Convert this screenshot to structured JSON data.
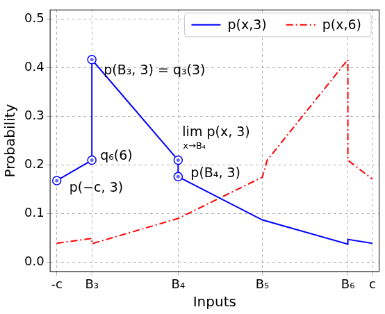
{
  "chart_data": {
    "type": "line",
    "x_label": "Inputs",
    "y_label": "Probability",
    "xlim": [
      -4.7,
      4.7
    ],
    "xticks": [
      {
        "value": -4.5,
        "label": "-c"
      },
      {
        "value": -3.5,
        "label": "B₃"
      },
      {
        "value": -1.04,
        "label": "B₄"
      },
      {
        "value": 1.36,
        "label": "B₅"
      },
      {
        "value": 3.8,
        "label": "B₆"
      },
      {
        "value": 4.5,
        "label": "c"
      }
    ],
    "ylim": [
      -0.02,
      0.52
    ],
    "yticks": [
      {
        "value": 0,
        "label": "0.0"
      },
      0.1,
      0.2,
      0.3,
      0.4,
      0.5
    ],
    "grid": true,
    "legend": "upper right",
    "series": [
      {
        "name": "p(x,3)",
        "color": "#0000ff",
        "line_style": "solid",
        "x": [
          -4.5,
          -3.5,
          -3.5,
          -1.04,
          -1.04,
          1.36,
          3.8,
          3.8,
          4.5
        ],
        "values": [
          0.168,
          0.21,
          0.417,
          0.21,
          0.176,
          0.087,
          0.037,
          0.047,
          0.039
        ]
      },
      {
        "name": "p(x,6)",
        "color": "#ff0000",
        "line_style": "dashdot",
        "x": [
          -4.5,
          -3.5,
          -3.5,
          -1.04,
          1.36,
          1.5,
          3.8,
          3.8,
          4.5
        ],
        "values": [
          0.039,
          0.049,
          0.038,
          0.09,
          0.175,
          0.21,
          0.417,
          0.21,
          0.171
        ]
      }
    ],
    "annotations": [
      {
        "text": [
          "p(B₃, 3) = q₃(3)"
        ],
        "x": -3.5,
        "y": 0.417
      },
      {
        "text": [
          "q₆(6)"
        ],
        "x": -3.5,
        "y": 0.21
      },
      {
        "text": [
          "p(−c, 3)"
        ],
        "x": -4.5,
        "y": 0.168
      },
      {
        "text": [
          "lim p(x, 3)",
          "x→B₄"
        ],
        "x": -1.04,
        "y": 0.21
      },
      {
        "text": [
          "p(B₄, 3)"
        ],
        "x": -1.04,
        "y": 0.176
      }
    ]
  }
}
